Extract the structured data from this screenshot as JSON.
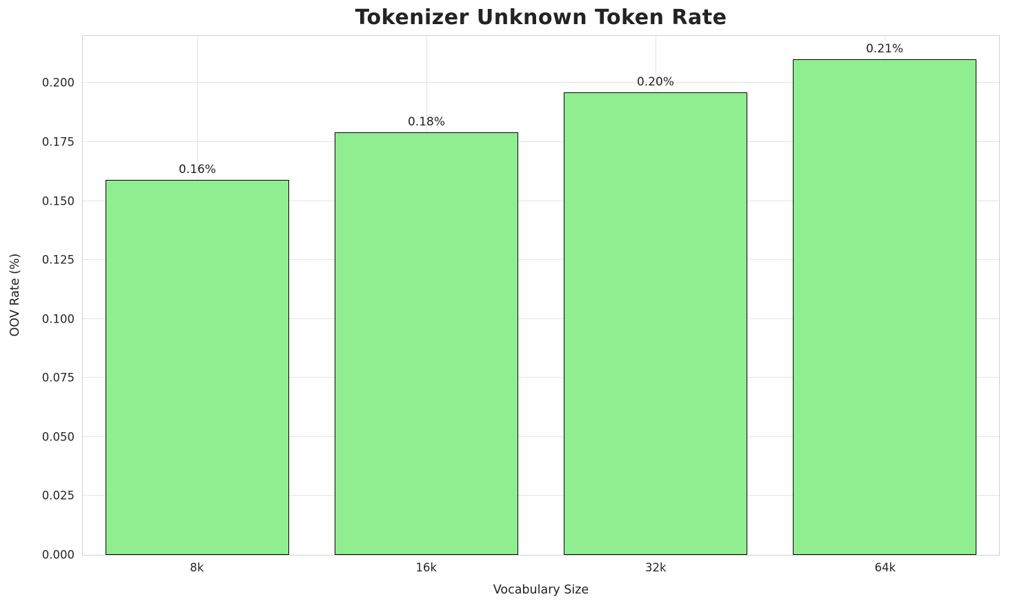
{
  "chart_data": {
    "type": "bar",
    "title": "Tokenizer Unknown Token Rate",
    "xlabel": "Vocabulary Size",
    "ylabel": "OOV Rate (%)",
    "categories": [
      "8k",
      "16k",
      "32k",
      "64k"
    ],
    "values": [
      0.159,
      0.179,
      0.196,
      0.21
    ],
    "bar_labels": [
      "0.16%",
      "0.18%",
      "0.20%",
      "0.21%"
    ],
    "ylim": [
      0,
      0.22
    ],
    "yticks": [
      0.0,
      0.025,
      0.05,
      0.075,
      0.1,
      0.125,
      0.15,
      0.175,
      0.2
    ],
    "ytick_labels": [
      "0.000",
      "0.025",
      "0.050",
      "0.075",
      "0.100",
      "0.125",
      "0.150",
      "0.175",
      "0.200"
    ],
    "grid": true,
    "legend": "none",
    "bar_color": "#90EE90",
    "bar_edge_color": "#000000"
  }
}
